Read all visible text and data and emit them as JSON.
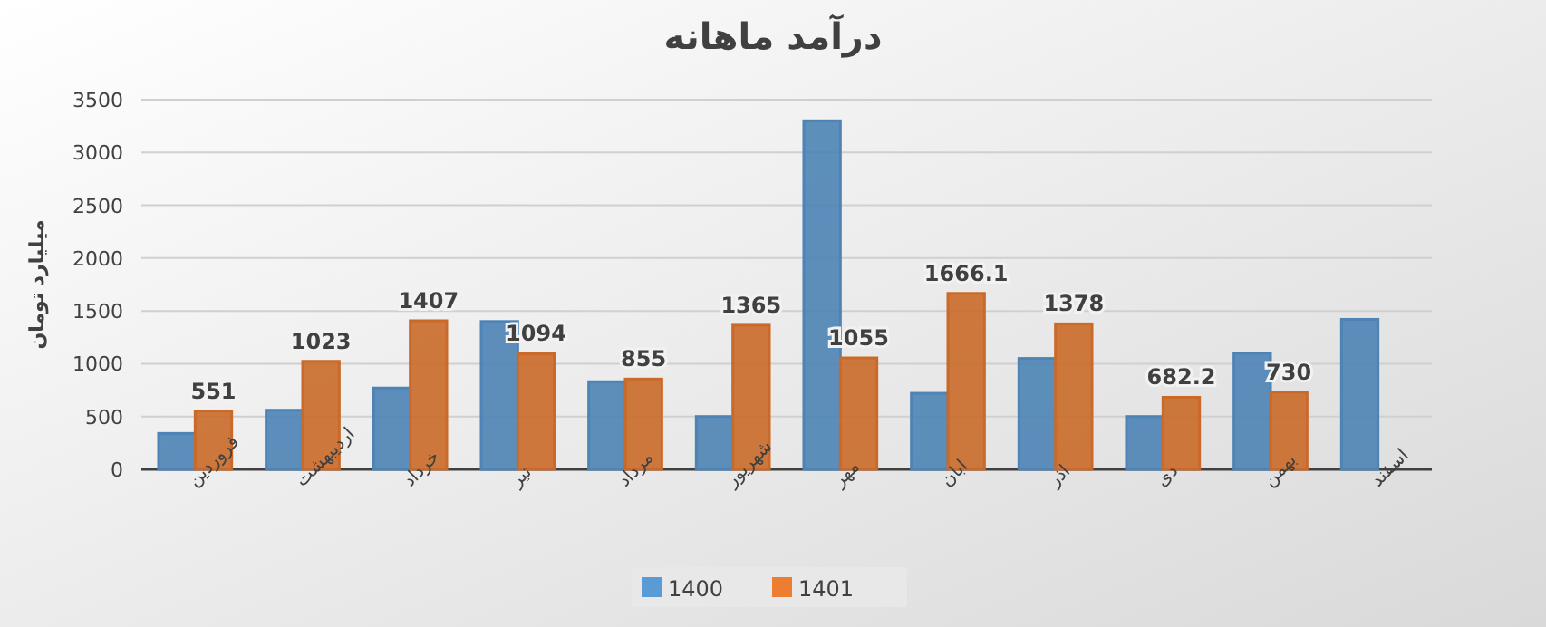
{
  "chart_data": {
    "type": "bar",
    "title": "درآمد ماهانه",
    "ylabel": "میلیارد تومان",
    "categories": [
      "فروردین",
      "اردیبهشت",
      "خرداد",
      "تیر",
      "مرداد",
      "شهریور",
      "مهر",
      "ابان",
      "اذر",
      "دی",
      "بهمن",
      "اسفند"
    ],
    "series": [
      {
        "name": "1400",
        "color": "#5b9bd5",
        "values": [
          340,
          560,
          770,
          1400,
          830,
          500,
          3300,
          720,
          1050,
          500,
          1100,
          1420
        ]
      },
      {
        "name": "1401",
        "color": "#ed7d31",
        "values": [
          551,
          1023,
          1407,
          1094,
          855,
          1365,
          1055,
          1666.1,
          1378,
          682.2,
          730,
          null
        ],
        "value_labels": [
          "551",
          "1023",
          "1407",
          "1094",
          "855",
          "1365",
          "1055",
          "1666.1",
          "1378",
          "682.2",
          "730",
          null
        ]
      }
    ],
    "ylim": [
      0,
      3500
    ],
    "yticks": [
      0,
      500,
      1000,
      1500,
      2000,
      2500,
      3000,
      3500
    ],
    "grid": "y",
    "legend": "bottom"
  }
}
